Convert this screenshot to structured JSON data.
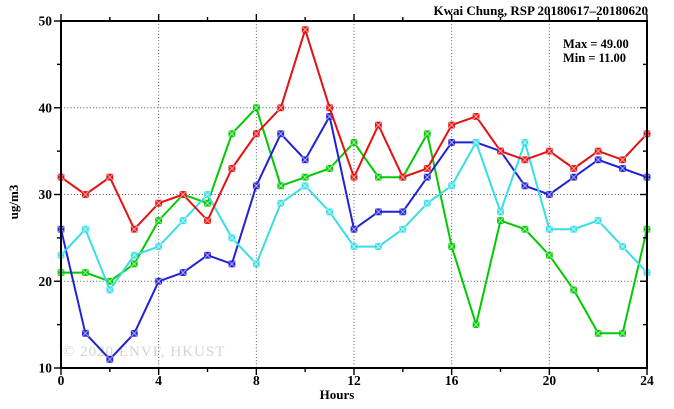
{
  "chart_data": {
    "type": "line",
    "title": "Kwai Chung, RSP 20180617–20180620",
    "xlabel": "Hours",
    "ylabel": "ug/m3",
    "watermark": "© 2020 ENVF, HKUST",
    "annotations": {
      "max": "Max = 49.00",
      "min": "Min = 11.00"
    },
    "xlim": [
      0,
      24
    ],
    "ylim": [
      10,
      50
    ],
    "xticks": [
      0,
      4,
      8,
      12,
      16,
      20,
      24
    ],
    "yticks": [
      10,
      20,
      30,
      40,
      50
    ],
    "x_minor_step": 2,
    "y_minor_step": 5,
    "grid_x": [
      4,
      8,
      12,
      16,
      20
    ],
    "grid_y": [
      20,
      30,
      40
    ],
    "legend": "none",
    "x": [
      0,
      1,
      2,
      3,
      4,
      5,
      6,
      7,
      8,
      9,
      10,
      11,
      12,
      13,
      14,
      15,
      16,
      17,
      18,
      19,
      20,
      21,
      22,
      23,
      24
    ],
    "series": [
      {
        "name": "green",
        "color": "#00cb00",
        "values": [
          21,
          21,
          20,
          22,
          27,
          30,
          29,
          37,
          40,
          31,
          32,
          33,
          36,
          32,
          32,
          37,
          24,
          15,
          27,
          26,
          23,
          19,
          14,
          14,
          26
        ]
      },
      {
        "name": "blue",
        "color": "#2121d6",
        "values": [
          26,
          14,
          11,
          14,
          20,
          21,
          23,
          22,
          31,
          37,
          34,
          39,
          26,
          28,
          28,
          32,
          36,
          36,
          35,
          31,
          30,
          32,
          34,
          33,
          32
        ]
      },
      {
        "name": "cyan",
        "color": "#37dee4",
        "values": [
          23,
          26,
          19,
          23,
          24,
          27,
          30,
          25,
          22,
          29,
          31,
          28,
          24,
          24,
          26,
          29,
          31,
          36,
          28,
          36,
          26,
          26,
          27,
          24,
          21
        ]
      },
      {
        "name": "red",
        "color": "#e51010",
        "values": [
          32,
          30,
          32,
          26,
          29,
          30,
          27,
          33,
          37,
          40,
          49,
          40,
          32,
          38,
          32,
          33,
          38,
          39,
          35,
          34,
          35,
          33,
          35,
          34,
          37
        ]
      }
    ]
  }
}
